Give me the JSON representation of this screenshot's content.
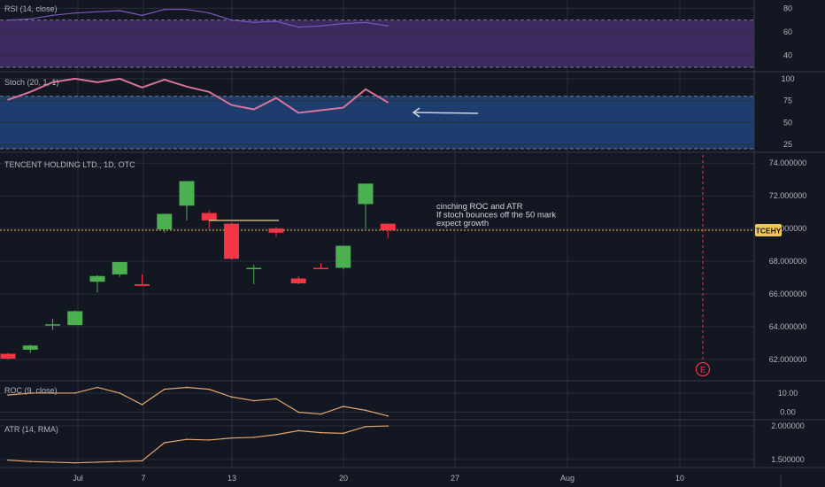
{
  "chart_data": [
    {
      "type": "line",
      "panel": "rsi",
      "title": "RSI (14, close)",
      "yticks": [
        40,
        60,
        80
      ],
      "ylim": [
        27,
        87
      ],
      "bands": {
        "upper": 70,
        "lower": 30
      },
      "color": "#7e57c2",
      "x": [
        "Jun 29",
        "Jun 30",
        "Jul 1",
        "Jul 2",
        "Jul 3",
        "Jul 6",
        "Jul 7",
        "Jul 8",
        "Jul 9",
        "Jul 10",
        "Jul 13",
        "Jul 14",
        "Jul 15",
        "Jul 16",
        "Jul 17",
        "Jul 20",
        "Jul 21",
        "Jul 22"
      ],
      "values": [
        70,
        71,
        74,
        76,
        77,
        78,
        74,
        79,
        79,
        76,
        70,
        68,
        69,
        64,
        65,
        67,
        68,
        65
      ]
    },
    {
      "type": "line",
      "panel": "stoch",
      "title": "Stoch (20, 1, 1)",
      "yticks": [
        25,
        50,
        75,
        100
      ],
      "ylim": [
        18,
        106
      ],
      "bands": {
        "upper": 80,
        "lower": 20
      },
      "color": "#d8739a",
      "x": [
        "Jun 29",
        "Jun 30",
        "Jul 1",
        "Jul 2",
        "Jul 3",
        "Jul 6",
        "Jul 7",
        "Jul 8",
        "Jul 9",
        "Jul 10",
        "Jul 13",
        "Jul 14",
        "Jul 15",
        "Jul 16",
        "Jul 17",
        "Jul 20",
        "Jul 21",
        "Jul 22"
      ],
      "values": [
        76,
        85,
        96,
        100,
        96,
        100,
        90,
        99,
        91,
        85,
        70,
        65,
        78,
        61,
        64,
        67,
        88,
        73
      ]
    },
    {
      "type": "candlestick",
      "panel": "price",
      "title": "TENCENT HOLDING LTD., 1D, OTC",
      "symbol": "TCEHY",
      "last_price": 69.9,
      "yticks": [
        "62.000000",
        "64.000000",
        "66.000000",
        "68.000000",
        "70.000000",
        "72.000000",
        "74.000000"
      ],
      "ylim": [
        60.7,
        74.5
      ],
      "up_color": "#4caf50",
      "down_color": "#f23645",
      "x": [
        "Jun 29",
        "Jun 30",
        "Jul 1",
        "Jul 2",
        "Jul 3",
        "Jul 6",
        "Jul 7",
        "Jul 8",
        "Jul 9",
        "Jul 10",
        "Jul 13",
        "Jul 14",
        "Jul 15",
        "Jul 16",
        "Jul 17",
        "Jul 20",
        "Jul 21",
        "Jul 22"
      ],
      "open": [
        62.35,
        62.6,
        64.1,
        64.1,
        66.75,
        67.2,
        66.6,
        69.95,
        71.4,
        70.95,
        70.3,
        67.55,
        70.0,
        66.95,
        67.6,
        67.6,
        71.5,
        70.3
      ],
      "high": [
        62.4,
        62.9,
        64.5,
        65.0,
        67.15,
        67.95,
        67.2,
        70.9,
        72.8,
        71.1,
        70.35,
        67.8,
        70.1,
        67.1,
        67.9,
        68.95,
        72.75,
        70.3
      ],
      "low": [
        62.0,
        62.4,
        63.8,
        64.1,
        66.1,
        67.05,
        66.5,
        69.75,
        70.5,
        70.0,
        68.1,
        66.6,
        69.5,
        66.6,
        67.5,
        67.5,
        70.0,
        69.4
      ],
      "close": [
        62.05,
        62.85,
        64.15,
        64.95,
        67.1,
        67.95,
        66.5,
        70.9,
        72.9,
        70.5,
        68.15,
        67.6,
        69.75,
        66.65,
        67.55,
        68.95,
        72.75,
        69.9
      ],
      "earnings_marker": "E",
      "annotation": [
        "cinching ROC and ATR",
        "If stoch bounces off the 50 mark",
        "expect growth"
      ]
    },
    {
      "type": "line",
      "panel": "roc",
      "title": "ROC (9, close)",
      "yticks": [
        "0.00",
        "10.00"
      ],
      "ylim": [
        -3,
        16
      ],
      "color": "#e2a66e",
      "x": [
        "Jun 29",
        "Jun 30",
        "Jul 1",
        "Jul 2",
        "Jul 3",
        "Jul 6",
        "Jul 7",
        "Jul 8",
        "Jul 9",
        "Jul 10",
        "Jul 13",
        "Jul 14",
        "Jul 15",
        "Jul 16",
        "Jul 17",
        "Jul 20",
        "Jul 21",
        "Jul 22"
      ],
      "values": [
        9,
        10,
        10,
        10,
        13,
        10,
        4,
        12,
        13,
        12,
        8,
        6,
        7,
        0,
        -1,
        3,
        1,
        -2
      ]
    },
    {
      "type": "line",
      "panel": "atr",
      "title": "ATR (14, RMA)",
      "yticks": [
        "1.500000",
        "2.000000"
      ],
      "ylim": [
        1.38,
        2.08
      ],
      "color": "#e2a66e",
      "x": [
        "Jun 29",
        "Jun 30",
        "Jul 1",
        "Jul 2",
        "Jul 3",
        "Jul 6",
        "Jul 7",
        "Jul 8",
        "Jul 9",
        "Jul 10",
        "Jul 13",
        "Jul 14",
        "Jul 15",
        "Jul 16",
        "Jul 17",
        "Jul 20",
        "Jul 21",
        "Jul 22"
      ],
      "values": [
        1.49,
        1.47,
        1.46,
        1.45,
        1.46,
        1.47,
        1.48,
        1.75,
        1.8,
        1.79,
        1.82,
        1.83,
        1.87,
        1.93,
        1.9,
        1.89,
        1.99,
        2.0
      ]
    }
  ],
  "time_axis": [
    "Jul",
    "7",
    "13",
    "20",
    "27",
    "Aug",
    "10"
  ],
  "colors": {
    "background": "#131722",
    "grid": "#2a2e39",
    "text": "#b2b5be",
    "last_price_tag": "#f0c65a",
    "rsi_band": "#3c2a5e",
    "stoch_band": "#1c3d6e",
    "annotation_line": "#f5e8a8",
    "earnings": "#f23645"
  }
}
